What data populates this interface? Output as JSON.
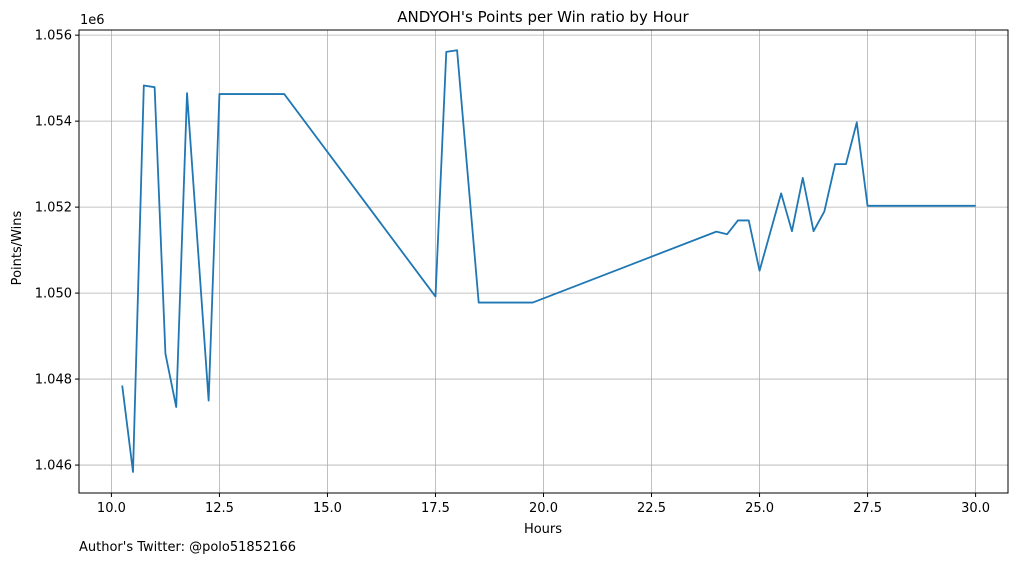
{
  "chart_data": {
    "type": "line",
    "title": "ANDYOH's Points per Win ratio by Hour",
    "xlabel": "Hours",
    "ylabel": "Points/Wins",
    "y_offset_label": "1e6",
    "footnote": "Author's Twitter: @polo51852166",
    "xlim": [
      9.25,
      30.75
    ],
    "ylim": [
      1.04535,
      1.05612
    ],
    "x_ticks": [
      10.0,
      12.5,
      15.0,
      17.5,
      20.0,
      22.5,
      25.0,
      27.5,
      30.0
    ],
    "x_tick_labels": [
      "10.0",
      "12.5",
      "15.0",
      "17.5",
      "20.0",
      "22.5",
      "25.0",
      "27.5",
      "30.0"
    ],
    "y_ticks": [
      1.046,
      1.048,
      1.05,
      1.052,
      1.054,
      1.056
    ],
    "y_tick_labels": [
      "1.046",
      "1.048",
      "1.050",
      "1.052",
      "1.054",
      "1.056"
    ],
    "grid": true,
    "line_color": "#1f77b4",
    "series": [
      {
        "x": [
          10.25,
          10.5,
          10.75,
          11.0,
          11.25,
          11.5,
          11.75,
          12.25,
          12.5,
          14.0,
          17.5,
          17.75,
          18.0,
          18.5,
          19.75,
          24.0,
          24.25,
          24.5,
          24.75,
          25.0,
          25.5,
          25.75,
          26.0,
          26.25,
          26.5,
          26.75,
          27.0,
          27.25,
          27.5,
          30.0
        ],
        "y": [
          1.04785,
          1.04584,
          1.05483,
          1.05479,
          1.04859,
          1.04735,
          1.05465,
          1.0475,
          1.05463,
          1.05463,
          1.04992,
          1.05561,
          1.05565,
          1.04978,
          1.04978,
          1.05143,
          1.05137,
          1.05169,
          1.05169,
          1.05052,
          1.05232,
          1.05144,
          1.05268,
          1.05144,
          1.0519,
          1.053,
          1.053,
          1.05397,
          1.05203,
          1.05203
        ]
      }
    ]
  }
}
